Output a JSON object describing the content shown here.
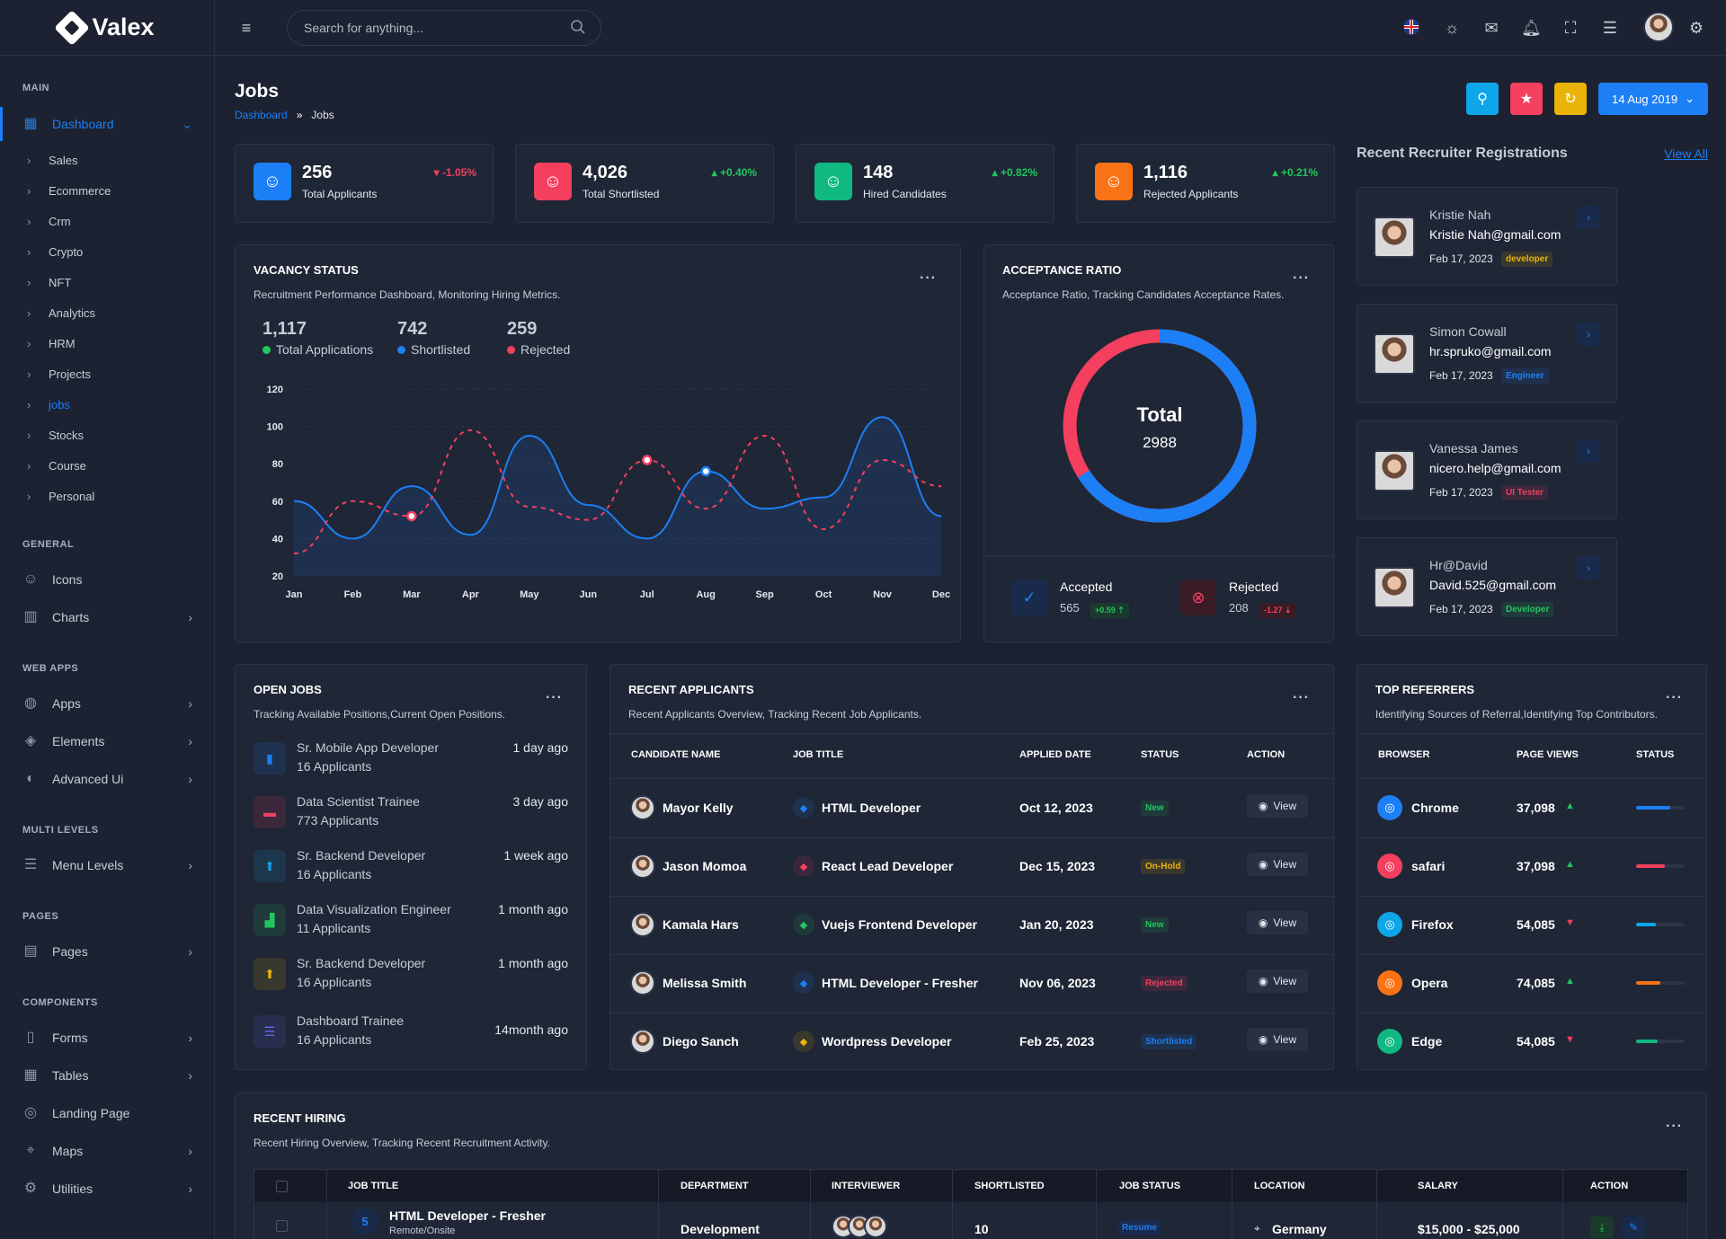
{
  "brand": "Valex",
  "search": {
    "placeholder": "Search for anything..."
  },
  "page": {
    "title": "Jobs",
    "breadcrumb_home": "Dashboard",
    "breadcrumb_sep": "»",
    "breadcrumb_current": "Jobs",
    "date_button": "14 Aug 2019"
  },
  "sidebar": {
    "sections": {
      "main": "MAIN",
      "general": "GENERAL",
      "webapps": "WEB APPS",
      "multilevels": "MULTI LEVELS",
      "pages": "PAGES",
      "components": "COMPONENTS"
    },
    "dashboard": "Dashboard",
    "subitems": [
      "Sales",
      "Ecommerce",
      "Crm",
      "Crypto",
      "NFT",
      "Analytics",
      "HRM",
      "Projects",
      "jobs",
      "Stocks",
      "Course",
      "Personal"
    ],
    "general": [
      "Icons",
      "Charts"
    ],
    "webapps": [
      "Apps",
      "Elements",
      "Advanced Ui"
    ],
    "multi": [
      "Menu Levels"
    ],
    "pages": [
      "Pages"
    ],
    "components": [
      "Forms",
      "Tables",
      "Landing Page",
      "Maps",
      "Utilities"
    ]
  },
  "stats": [
    {
      "value": "256",
      "label": "Total Applicants",
      "change": "-1.05%",
      "dir": "down",
      "color": "#1c7ff5"
    },
    {
      "value": "4,026",
      "label": "Total Shortlisted",
      "change": "+0.40%",
      "dir": "up",
      "color": "#f43f5e"
    },
    {
      "value": "148",
      "label": "Hired Candidates",
      "change": "+0.82%",
      "dir": "up",
      "color": "#10b981"
    },
    {
      "value": "1,116",
      "label": "Rejected Applicants",
      "change": "+0.21%",
      "dir": "up",
      "color": "#f97316"
    }
  ],
  "vacancy": {
    "title": "VACANCY STATUS",
    "desc": "Recruitment Performance Dashboard, Monitoring Hiring Metrics.",
    "summary": [
      {
        "value": "1,117",
        "label": "Total Applications",
        "color": "#22c55e"
      },
      {
        "value": "742",
        "label": "Shortlisted",
        "color": "#1c7ff5"
      },
      {
        "value": "259",
        "label": "Rejected",
        "color": "#f43f5e"
      }
    ]
  },
  "chart_data": {
    "type": "line",
    "x": [
      "Jan",
      "Feb",
      "Mar",
      "Apr",
      "May",
      "Jun",
      "Jul",
      "Aug",
      "Sep",
      "Oct",
      "Nov",
      "Dec"
    ],
    "ylim": [
      20,
      120
    ],
    "yticks": [
      20,
      40,
      60,
      80,
      100,
      120
    ],
    "series": [
      {
        "name": "Shortlisted",
        "color": "#1c7ff5",
        "style": "solid",
        "area": true,
        "values": [
          60,
          40,
          68,
          42,
          95,
          58,
          40,
          76,
          56,
          62,
          105,
          52
        ]
      },
      {
        "name": "Rejected",
        "color": "#f43f5e",
        "style": "dashed",
        "values": [
          32,
          60,
          52,
          98,
          57,
          50,
          82,
          56,
          95,
          45,
          82,
          68
        ]
      }
    ]
  },
  "acceptance": {
    "title": "ACCEPTANCE RATIO",
    "desc": "Acceptance Ratio, Tracking Candidates Acceptance Rates.",
    "total_label": "Total",
    "total_value": "2988",
    "accepted_label": "Accepted",
    "accepted_value": "565",
    "accepted_change": "+0.59",
    "rejected_label": "Rejected",
    "rejected_value": "208",
    "rejected_change": "-1.27",
    "ratio": {
      "accepted": 0.66,
      "rejected": 0.34
    }
  },
  "recruiters": {
    "title": "Recent Recruiter Registrations",
    "view_all": "View All",
    "items": [
      {
        "name": "Kristie Nah",
        "email": "Kristie Nah@gmail.com",
        "date": "Feb 17, 2023",
        "tag": "developer",
        "tag_color": "#eab308"
      },
      {
        "name": "Simon Cowall",
        "email": "hr.spruko@gmail.com",
        "date": "Feb 17, 2023",
        "tag": "Engineer",
        "tag_color": "#1c7ff5"
      },
      {
        "name": "Vanessa James",
        "email": "nicero.help@gmail.com",
        "date": "Feb 17, 2023",
        "tag": "UI Tester",
        "tag_color": "#f43f5e"
      },
      {
        "name": "Hr@David",
        "email": "David.525@gmail.com",
        "date": "Feb 17, 2023",
        "tag": "Developer",
        "tag_color": "#22c55e"
      }
    ]
  },
  "openjobs": {
    "title": "OPEN JOBS",
    "desc": "Tracking Available Positions,Current Open Positions.",
    "items": [
      {
        "title": "Sr. Mobile App Developer",
        "applicants": "16 Applicants",
        "time": "1 day ago",
        "icon": "phone-icon",
        "color": "#1c7ff5"
      },
      {
        "title": "Data Scientist Trainee",
        "applicants": "773 Applicants",
        "time": "3 day ago",
        "icon": "briefcase-icon",
        "color": "#f43f5e"
      },
      {
        "title": "Sr. Backend Developer",
        "applicants": "16 Applicants",
        "time": "1 week ago",
        "icon": "upload-icon",
        "color": "#0ea5e9"
      },
      {
        "title": "Data Visualization Engineer",
        "applicants": "11 Applicants",
        "time": "1 month ago",
        "icon": "bar-chart-icon",
        "color": "#22c55e"
      },
      {
        "title": "Sr. Backend Developer",
        "applicants": "16 Applicants",
        "time": "1 month ago",
        "icon": "upload-icon",
        "color": "#eab308"
      },
      {
        "title": "Dashboard Trainee",
        "applicants": "16 Applicants",
        "time": "14month ago",
        "icon": "list-icon",
        "color": "#6366f1"
      }
    ]
  },
  "applicants": {
    "title": "RECENT APPLICANTS",
    "desc": "Recent Applicants Overview, Tracking Recent Job Applicants.",
    "headers": [
      "CANDIDATE NAME",
      "JOB TITLE",
      "APPLIED DATE",
      "STATUS",
      "ACTION"
    ],
    "view_label": "View",
    "rows": [
      {
        "name": "Mayor Kelly",
        "job": "HTML Developer",
        "date": "Oct 12, 2023",
        "status": "New",
        "status_color": "#22c55e",
        "icon_color": "#1c7ff5"
      },
      {
        "name": "Jason Momoa",
        "job": "React Lead Developer",
        "date": "Dec 15, 2023",
        "status": "On-Hold",
        "status_color": "#eab308",
        "icon_color": "#f43f5e"
      },
      {
        "name": "Kamala Hars",
        "job": "Vuejs Frontend Developer",
        "date": "Jan 20, 2023",
        "status": "New",
        "status_color": "#22c55e",
        "icon_color": "#22c55e"
      },
      {
        "name": "Melissa Smith",
        "job": "HTML Developer - Fresher",
        "date": "Nov 06, 2023",
        "status": "Rejected",
        "status_color": "#f43f5e",
        "icon_color": "#1c7ff5"
      },
      {
        "name": "Diego Sanch",
        "job": "Wordpress Developer",
        "date": "Feb 25, 2023",
        "status": "Shortlisted",
        "status_color": "#1c7ff5",
        "icon_color": "#eab308"
      }
    ]
  },
  "referrers": {
    "title": "TOP REFERRERS",
    "desc": "Identifying Sources of Referral,Identifying Top Contributors.",
    "headers": [
      "BROWSER",
      "PAGE VIEWS",
      "STATUS"
    ],
    "rows": [
      {
        "browser": "Chrome",
        "views": "37,098",
        "dir": "up",
        "color": "#1c7ff5",
        "progress": 0.7
      },
      {
        "browser": "safari",
        "views": "37,098",
        "dir": "up",
        "color": "#f43f5e",
        "progress": 0.6
      },
      {
        "browser": "Firefox",
        "views": "54,085",
        "dir": "down",
        "color": "#0ea5e9",
        "progress": 0.4
      },
      {
        "browser": "Opera",
        "views": "74,085",
        "dir": "up",
        "color": "#f97316",
        "progress": 0.5
      },
      {
        "browser": "Edge",
        "views": "54,085",
        "dir": "down",
        "color": "#10b981",
        "progress": 0.45
      }
    ]
  },
  "hiring": {
    "title": "RECENT HIRING",
    "desc": "Recent Hiring Overview, Tracking Recent Recruitment Activity.",
    "headers": [
      "JOB TITLE",
      "DEPARTMENT",
      "INTERVIEWER",
      "SHORTLISTED",
      "JOB STATUS",
      "LOCATION",
      "SALARY",
      "ACTION"
    ],
    "row": {
      "title": "HTML Developer - Fresher",
      "subtitle": "Remote/Onsite",
      "dept": "Development",
      "shortlisted": "10",
      "status": "Resume",
      "location": "Germany",
      "salary": "$15,000 - $25,000"
    }
  }
}
